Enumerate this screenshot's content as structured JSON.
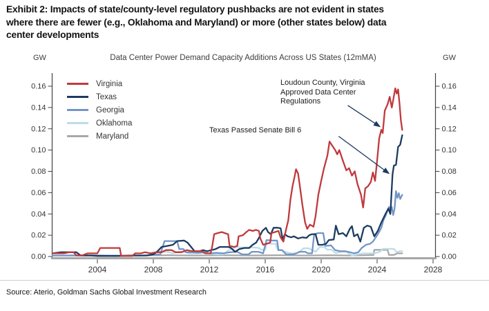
{
  "page": {
    "title_lines": [
      "Exhibit 2: Impacts of state/county-level regulatory pushbacks are not evident in states",
      "where there are fewer (e.g., Oklahoma and Maryland) or more (other states below) data",
      "center developments"
    ],
    "source": "Source: Aterio, Goldman Sachs Global Investment Research"
  },
  "chart": {
    "unit_left": "GW",
    "unit_right": "GW",
    "axis_color": "#404040",
    "baseline_color": "#a6a6a6",
    "arrow_color": "#1b3a60"
  },
  "chart_data": {
    "type": "line",
    "title": "Data Center Power Demand Capacity Additions Across US States (12mMA)",
    "xlabel": "",
    "ylabel_left": "GW",
    "ylabel_right": "GW",
    "xlim": [
      2000.7,
      2028.2
    ],
    "ylim": [
      0,
      0.172
    ],
    "x_tick_labels": [
      "2004",
      "2008",
      "2012",
      "2016",
      "2020",
      "2024",
      "2028"
    ],
    "y_tick_labels": [
      "0.00",
      "0.02",
      "0.04",
      "0.06",
      "0.08",
      "0.10",
      "0.12",
      "0.14",
      "0.16"
    ],
    "grid": false,
    "legend_position": "top-left",
    "series": [
      {
        "name": "Virginia",
        "color": "#c0393c",
        "x": [
          2000.8,
          2001.6,
          2002.0,
          2002.3,
          2002.5,
          2002.9,
          2003.3,
          2003.6,
          2004.0,
          2004.2,
          2005.6,
          2005.7,
          2006.5,
          2006.7,
          2007.1,
          2007.4,
          2007.8,
          2008.2,
          2008.6,
          2008.9,
          2009.3,
          2009.6,
          2010.0,
          2010.4,
          2010.8,
          2011.1,
          2011.5,
          2011.7,
          2012.1,
          2012.2,
          2012.35,
          2012.6,
          2012.9,
          2013.1,
          2013.35,
          2013.45,
          2013.8,
          2014.0,
          2014.1,
          2014.4,
          2014.65,
          2014.85,
          2015.1,
          2015.35,
          2015.55,
          2015.65,
          2015.85,
          2016.1,
          2016.35,
          2016.45,
          2016.7,
          2016.95,
          2017.1,
          2017.3,
          2017.5,
          2017.65,
          2017.8,
          2017.95,
          2018.1,
          2018.2,
          2018.35,
          2018.5,
          2018.65,
          2018.85,
          2019.0,
          2019.2,
          2019.45,
          2019.6,
          2019.8,
          2020.0,
          2020.2,
          2020.45,
          2020.6,
          2020.8,
          2021.0,
          2021.15,
          2021.3,
          2021.5,
          2021.8,
          2022.0,
          2022.2,
          2022.4,
          2022.6,
          2022.85,
          2023.0,
          2023.15,
          2023.35,
          2023.55,
          2023.7,
          2023.85,
          2024.0,
          2024.15,
          2024.3,
          2024.4,
          2024.55,
          2024.75,
          2024.9,
          2025.05,
          2025.15,
          2025.3,
          2025.4,
          2025.5,
          2025.6,
          2025.7,
          2025.8
        ],
        "values": [
          0.003,
          0.003,
          0.004,
          0.004,
          0.001,
          0.001,
          0.003,
          0.003,
          0.003,
          0.008,
          0.008,
          0.0005,
          0.0005,
          0.003,
          0.003,
          0.004,
          0.003,
          0.004,
          0.004,
          0.006,
          0.006,
          0.004,
          0.004,
          0.006,
          0.005,
          0.005,
          0.005,
          0.003,
          0.003,
          0.009,
          0.021,
          0.022,
          0.023,
          0.022,
          0.021,
          0.01,
          0.009,
          0.01,
          0.019,
          0.02,
          0.023,
          0.025,
          0.024,
          0.025,
          0.024,
          0.017,
          0.011,
          0.012,
          0.013,
          0.022,
          0.023,
          0.024,
          0.018,
          0.014,
          0.026,
          0.034,
          0.053,
          0.066,
          0.075,
          0.082,
          0.078,
          0.064,
          0.049,
          0.032,
          0.026,
          0.03,
          0.028,
          0.038,
          0.058,
          0.071,
          0.083,
          0.095,
          0.108,
          0.104,
          0.1,
          0.096,
          0.1,
          0.092,
          0.081,
          0.083,
          0.076,
          0.08,
          0.068,
          0.058,
          0.046,
          0.064,
          0.066,
          0.07,
          0.079,
          0.071,
          0.09,
          0.111,
          0.119,
          0.116,
          0.137,
          0.143,
          0.15,
          0.14,
          0.147,
          0.158,
          0.153,
          0.157,
          0.144,
          0.128,
          0.119
        ]
      },
      {
        "name": "Texas",
        "color": "#1b3a60",
        "x": [
          2000.8,
          2001.4,
          2002.5,
          2002.8,
          2003.5,
          2004.0,
          2005.5,
          2006.5,
          2007.5,
          2008.0,
          2008.3,
          2008.6,
          2009.0,
          2009.4,
          2009.7,
          2010.2,
          2010.45,
          2010.7,
          2010.95,
          2011.3,
          2011.55,
          2011.85,
          2012.15,
          2012.45,
          2012.75,
          2013.1,
          2013.35,
          2013.55,
          2013.85,
          2014.15,
          2014.5,
          2014.85,
          2015.1,
          2015.35,
          2015.55,
          2015.8,
          2016.05,
          2016.2,
          2016.4,
          2016.6,
          2016.9,
          2017.1,
          2017.25,
          2017.4,
          2017.6,
          2017.85,
          2018.05,
          2018.35,
          2018.65,
          2018.95,
          2019.15,
          2019.35,
          2019.6,
          2019.8,
          2020.1,
          2020.35,
          2020.55,
          2020.9,
          2021.05,
          2021.25,
          2021.55,
          2021.8,
          2022.05,
          2022.2,
          2022.35,
          2022.6,
          2022.8,
          2023.05,
          2023.3,
          2023.55,
          2023.8,
          2024.05,
          2024.3,
          2024.6,
          2024.8,
          2024.95,
          2025.1,
          2025.2,
          2025.35,
          2025.5,
          2025.65,
          2025.8
        ],
        "values": [
          0.003,
          0.004,
          0.004,
          0.001,
          0.001,
          0.0005,
          0.0005,
          0.001,
          0.001,
          0.002,
          0.005,
          0.009,
          0.01,
          0.011,
          0.0145,
          0.015,
          0.013,
          0.009,
          0.005,
          0.005,
          0.006,
          0.005,
          0.006,
          0.007,
          0.009,
          0.009,
          0.009,
          0.008,
          0.0045,
          0.007,
          0.008,
          0.008,
          0.011,
          0.013,
          0.0175,
          0.024,
          0.027,
          0.023,
          0.021,
          0.027,
          0.027,
          0.0265,
          0.016,
          0.021,
          0.019,
          0.018,
          0.019,
          0.017,
          0.018,
          0.0175,
          0.02,
          0.021,
          0.021,
          0.011,
          0.011,
          0.012,
          0.0155,
          0.016,
          0.029,
          0.021,
          0.022,
          0.019,
          0.026,
          0.0285,
          0.019,
          0.021,
          0.014,
          0.027,
          0.029,
          0.028,
          0.019,
          0.024,
          0.032,
          0.04,
          0.045,
          0.04,
          0.077,
          0.0855,
          0.086,
          0.103,
          0.105,
          0.114
        ]
      },
      {
        "name": "Georgia",
        "color": "#7295c6",
        "x": [
          2000.8,
          2004.0,
          2006.0,
          2007.5,
          2008.5,
          2008.8,
          2009.7,
          2009.85,
          2010.15,
          2010.35,
          2010.8,
          2011.2,
          2011.6,
          2012.0,
          2012.5,
          2013.0,
          2013.5,
          2014.0,
          2014.35,
          2014.8,
          2015.05,
          2015.5,
          2015.85,
          2016.1,
          2016.5,
          2016.85,
          2016.95,
          2017.2,
          2017.5,
          2018.0,
          2018.5,
          2018.85,
          2019.05,
          2019.35,
          2019.5,
          2019.8,
          2020.15,
          2020.3,
          2020.7,
          2021.0,
          2021.35,
          2021.7,
          2022.05,
          2022.35,
          2022.65,
          2022.9,
          2023.2,
          2023.5,
          2023.7,
          2023.95,
          2024.1,
          2024.3,
          2024.45,
          2024.6,
          2024.75,
          2024.85,
          2024.95,
          2025.05,
          2025.15,
          2025.25,
          2025.35,
          2025.45,
          2025.55,
          2025.65,
          2025.8
        ],
        "values": [
          0.001,
          0.001,
          0.0008,
          0.001,
          0.002,
          0.0145,
          0.0145,
          0.007,
          0.007,
          0.004,
          0.004,
          0.0035,
          0.004,
          0.003,
          0.0035,
          0.003,
          0.004,
          0.0045,
          0.002,
          0.002,
          0.0045,
          0.0045,
          0.003,
          0.0155,
          0.015,
          0.015,
          0.006,
          0.006,
          0.002,
          0.002,
          0.0045,
          0.0045,
          0.003,
          0.003,
          0.021,
          0.022,
          0.022,
          0.01,
          0.0105,
          0.006,
          0.005,
          0.005,
          0.004,
          0.003,
          0.004,
          0.008,
          0.011,
          0.012,
          0.014,
          0.019,
          0.022,
          0.027,
          0.034,
          0.038,
          0.0435,
          0.0465,
          0.043,
          0.0465,
          0.039,
          0.045,
          0.0615,
          0.055,
          0.0595,
          0.054,
          0.058
        ]
      },
      {
        "name": "Oklahoma",
        "color": "#bddcea",
        "x": [
          2000.8,
          2004.0,
          2006.0,
          2008.0,
          2008.4,
          2009.0,
          2009.35,
          2009.8,
          2010.2,
          2010.55,
          2011.0,
          2011.5,
          2012.0,
          2012.5,
          2013.0,
          2013.4,
          2013.95,
          2014.35,
          2014.8,
          2015.2,
          2015.55,
          2015.7,
          2016.0,
          2016.1,
          2016.5,
          2016.75,
          2016.9,
          2017.2,
          2017.5,
          2017.85,
          2018.25,
          2018.6,
          2018.75,
          2019.1,
          2019.35,
          2019.6,
          2019.9,
          2020.2,
          2020.45,
          2020.75,
          2021.05,
          2021.4,
          2021.8,
          2022.2,
          2022.6,
          2023.0,
          2023.4,
          2023.8,
          2024.2,
          2024.4,
          2024.8,
          2025.2,
          2025.4,
          2025.6,
          2025.8
        ],
        "values": [
          0.0008,
          0.0008,
          0.0008,
          0.001,
          0.0045,
          0.0045,
          0.003,
          0.0045,
          0.0045,
          0.003,
          0.003,
          0.0035,
          0.003,
          0.002,
          0.002,
          0.006,
          0.009,
          0.0085,
          0.0085,
          0.0085,
          0.008,
          0.0065,
          0.0065,
          0.0123,
          0.012,
          0.012,
          0.006,
          0.0058,
          0.004,
          0.003,
          0.003,
          0.006,
          0.0078,
          0.0078,
          0.006,
          0.0045,
          0.009,
          0.009,
          0.0065,
          0.0065,
          0.0032,
          0.0045,
          0.0045,
          0.001,
          0.002,
          0.003,
          0.003,
          0.003,
          0.0045,
          0.0072,
          0.0072,
          0.0072,
          0.004,
          0.005,
          0.005
        ]
      },
      {
        "name": "Maryland",
        "color": "#a8a8a8",
        "x": [
          2000.8,
          2003.0,
          2005.0,
          2007.0,
          2009.0,
          2011.0,
          2013.0,
          2015.0,
          2017.0,
          2019.0,
          2020.5,
          2022.0,
          2023.0,
          2023.75,
          2023.8,
          2024.75,
          2024.85,
          2025.2,
          2025.45,
          2025.8
        ],
        "values": [
          0.0008,
          0.0012,
          0.0008,
          0.001,
          0.0012,
          0.001,
          0.0012,
          0.001,
          0.0012,
          0.001,
          0.0012,
          0.001,
          0.0012,
          0.0015,
          0.0063,
          0.0063,
          0.0015,
          0.0015,
          0.003,
          0.003
        ]
      }
    ],
    "annotations": [
      {
        "lines": [
          "Loudoun County, Virginia",
          "Approved Data Center",
          "Regulations"
        ],
        "arrow": {
          "from_year": 2021.9,
          "from_value": 0.142,
          "to_year": 2024.2,
          "to_value": 0.122
        }
      },
      {
        "lines": [
          "Texas Passed Senate Bill 6"
        ],
        "arrow": {
          "from_year": 2021.25,
          "from_value": 0.113,
          "to_year": 2024.85,
          "to_value": 0.078
        }
      }
    ]
  }
}
